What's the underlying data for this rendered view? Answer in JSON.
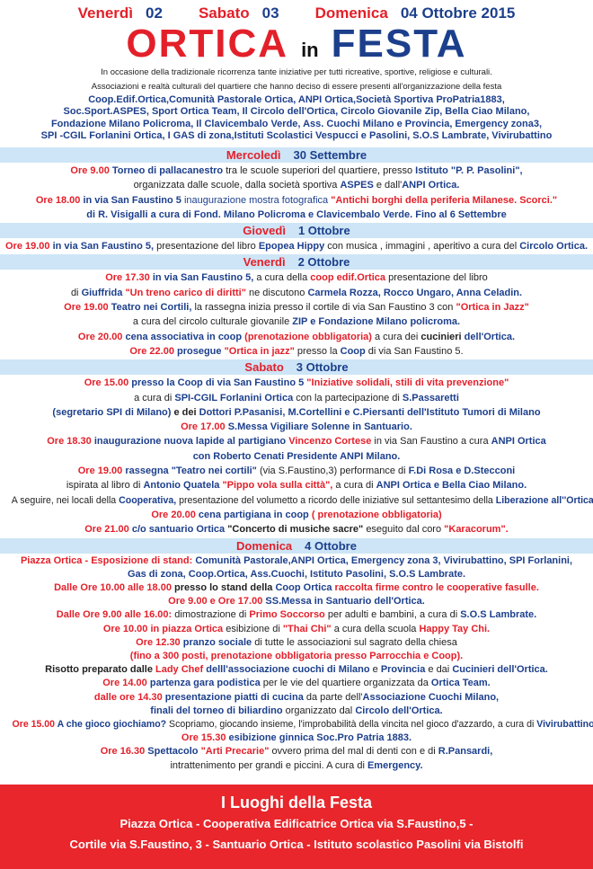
{
  "header": {
    "dates": [
      {
        "day": "Venerdì",
        "num": "02"
      },
      {
        "day": "Sabato",
        "num": "03"
      },
      {
        "day": "Domenica",
        "num": "04 Ottobre 2015"
      }
    ],
    "title_1": "ORTICA",
    "title_2": "in",
    "title_3": "FESTA",
    "intro": [
      "In occasione della tradizionale ricorrenza tante iniziative per tutti ricreative, sportive, religiose e culturali.",
      "Associazioni e realtà culturali del quartiere che hanno deciso di essere presenti all'organizzazione della festa"
    ],
    "associations": [
      "Coop.Edif.Ortica,Comunità Pastorale Ortica, ANPI Ortica,Società Sportiva ProPatria1883,",
      "Soc.Sport.ASPES, Sport Ortica Team, Il Circolo dell'Ortica, Circolo Giovanile Zip, Bella Ciao Milano,",
      "Fondazione Milano Policroma, Il Clavicembalo Verde, Ass. Cuochi Milano e Provincia, Emergency zona3,",
      "SPI -CGIL Forlanini Ortica, I GAS di zona,Istituti Scolastici Vespucci e Pasolini, S.O.S Lambrate, Vivirubattino"
    ]
  },
  "colors": {
    "red": "#e3202a",
    "navy": "#1c3f8c",
    "bar": "#cde5f6",
    "footer": "#e8262b"
  },
  "sections": [
    {
      "day": "Mercoledì",
      "date": "30 Settembre",
      "lines": [
        [
          [
            "r",
            "Ore 9.00 "
          ],
          [
            "b",
            "Torneo di pallacanestro "
          ],
          [
            "k",
            "tra le scuole superiori del quartiere, presso "
          ],
          [
            "b",
            "Istituto \"P. P.  Pasolini\","
          ]
        ],
        [
          [
            "k",
            "organizzata dalle scuole, dalla società sportiva "
          ],
          [
            "b",
            "ASPES"
          ],
          [
            "k",
            " e dall'"
          ],
          [
            "b",
            "ANPI Ortica."
          ]
        ],
        [
          [
            "r",
            "Ore 18.00 "
          ],
          [
            "b",
            "in via San Faustino 5 "
          ],
          [
            "n",
            "inaugurazione mostra fotografica "
          ],
          [
            "r",
            "\"Antichi borghi della periferia Milanese. Scorci.\""
          ]
        ],
        [
          [
            "b",
            "di R. Visigalli a cura di Fond. Milano Policroma e Clavicembalo Verde. Fino al 6 Settembre"
          ]
        ]
      ]
    },
    {
      "day": "Giovedì",
      "date": "1 Ottobre",
      "lines": [
        [
          [
            "r",
            "Ore 19.00 "
          ],
          [
            "b",
            "in via San Faustino 5, "
          ],
          [
            "k",
            "presentazione del libro "
          ],
          [
            "b",
            "Epopea Hippy "
          ],
          [
            "k",
            "con musica , immagini , aperitivo a cura del "
          ],
          [
            "b",
            "Circolo Ortica."
          ]
        ]
      ]
    },
    {
      "day": "Venerdì",
      "date": "2 Ottobre",
      "lines": [
        [
          [
            "r",
            "Ore 17.30 "
          ],
          [
            "b",
            "in via San Faustino 5, "
          ],
          [
            "k",
            "a cura della "
          ],
          [
            "r",
            "coop edif.Ortica "
          ],
          [
            "k",
            "presentazione del libro"
          ]
        ],
        [
          [
            "k",
            "di "
          ],
          [
            "b",
            "Giuffrida "
          ],
          [
            "r",
            "\"Un treno carico di diritti\" "
          ],
          [
            "k",
            "ne discutono "
          ],
          [
            "b",
            "Carmela Rozza, Rocco Ungaro, Anna Celadin."
          ]
        ],
        [
          [
            "r",
            "Ore 19.00 "
          ],
          [
            "b",
            "Teatro nei Cortili, "
          ],
          [
            "k",
            "la rassegna inizia presso il cortile di  via San Faustino 3 con "
          ],
          [
            "r",
            "\"Ortica in Jazz\""
          ]
        ],
        [
          [
            "k",
            "a cura del circolo culturale giovanile "
          ],
          [
            "b",
            "ZIP e Fondazione Milano policroma."
          ]
        ],
        [
          [
            "r",
            "Ore 20.00 "
          ],
          [
            "b",
            "cena associativa in coop "
          ],
          [
            "r",
            "(prenotazione obbligatoria) "
          ],
          [
            "k",
            "a cura dei "
          ],
          [
            "kb",
            "cucinieri "
          ],
          [
            "b",
            "dell'Ortica."
          ]
        ],
        [
          [
            "r",
            "Ore 22.00 "
          ],
          [
            "b",
            "prosegue "
          ],
          [
            "r",
            "\"Ortica in jazz\" "
          ],
          [
            "k",
            "presso la "
          ],
          [
            "b",
            "Coop "
          ],
          [
            "k",
            "di via San Faustino 5."
          ]
        ]
      ]
    },
    {
      "day": "Sabato",
      "date": "3 Ottobre",
      "lines": [
        [
          [
            "r",
            "Ore 15.00 "
          ],
          [
            "b",
            "presso la Coop di via San Faustino 5 "
          ],
          [
            "r",
            "\"Iniziative solidali, stili di vita prevenzione\""
          ]
        ],
        [
          [
            "k",
            "a cura di "
          ],
          [
            "b",
            "SPI-CGIL Forlanini Ortica "
          ],
          [
            "k",
            "con la partecipazione di "
          ],
          [
            "b",
            "S.Passaretti"
          ]
        ],
        [
          [
            "b",
            "(segretario SPI di Milano) "
          ],
          [
            "kb",
            "e dei "
          ],
          [
            "b",
            "Dottori P.Pasanisi, M.Cortellini e C.Piersanti dell'Istituto Tumori di Milano"
          ]
        ],
        [
          [
            "r",
            "Ore 17.00 "
          ],
          [
            "b",
            "S.Messa Vigiliare Solenne in Santuario."
          ]
        ],
        [
          [
            "r",
            "Ore 18.30 "
          ],
          [
            "b",
            "inaugurazione nuova lapide al partigiano "
          ],
          [
            "r",
            "Vincenzo Cortese "
          ],
          [
            "k",
            "in via San Faustino a cura "
          ],
          [
            "b",
            "ANPI Ortica"
          ]
        ],
        [
          [
            "b",
            "con Roberto Cenati Presidente ANPI Milano."
          ]
        ],
        [
          [
            "r",
            "Ore 19.00 "
          ],
          [
            "b",
            "rassegna \"Teatro nei cortili\" "
          ],
          [
            "k",
            "(via S.Faustino,3) performance di "
          ],
          [
            "b",
            "F.Di Rosa e D.Stecconi"
          ]
        ],
        [
          [
            "k",
            "ispirata al libro di "
          ],
          [
            "b",
            "Antonio Quatela "
          ],
          [
            "r",
            "\"Pippo vola sulla città\", "
          ],
          [
            "k",
            "a cura di "
          ],
          [
            "b",
            "ANPI Ortica e Bella Ciao Milano."
          ]
        ],
        [
          [
            "k",
            "A seguire, nei locali della "
          ],
          [
            "b",
            "Cooperativa, "
          ],
          [
            "k",
            "presentazione del volumetto a ricordo delle iniziative sul settantesimo della "
          ],
          [
            "b",
            "Liberazione all''Ortica"
          ]
        ],
        [
          [
            "r",
            "Ore 20.00 "
          ],
          [
            "b",
            "cena partigiana in coop "
          ],
          [
            "r",
            "( prenotazione obbligatoria)"
          ]
        ],
        [
          [
            "r",
            "Ore 21.00 "
          ],
          [
            "b",
            "c/o santuario Ortica "
          ],
          [
            "kb",
            "\"Concerto di musiche sacre\" "
          ],
          [
            "k",
            "eseguito dal coro "
          ],
          [
            "r",
            "\"Karacorum\"."
          ]
        ]
      ]
    },
    {
      "day": "Domenica",
      "date": "4 Ottobre",
      "lines": [
        [
          [
            "r",
            "Piazza Ortica - Esposizione di stand: "
          ],
          [
            "b",
            "Comunità Pastorale,ANPI Ortica, Emergency zona 3, Vivirubattino, SPI Forlanini,"
          ]
        ],
        [
          [
            "b",
            "Gas di zona, Coop.Ortica, Ass.Cuochi, Istituto Pasolini, S.O.S Lambrate."
          ]
        ],
        [
          [
            "r",
            "Dalle Ore 10.00 alle 18.00 "
          ],
          [
            "kb",
            "presso lo stand della "
          ],
          [
            "b",
            "Coop Ortica "
          ],
          [
            "r",
            "raccolta firme contro le cooperative fasulle."
          ]
        ],
        [
          [
            "r",
            "Ore 9.00 e Ore 17.00  "
          ],
          [
            "b",
            "SS.Messa in Santuario dell'Ortica."
          ]
        ],
        [
          [
            "r",
            "Dalle Ore 9.00 alle 16.00: "
          ],
          [
            "k",
            "dimostrazione di "
          ],
          [
            "r",
            "Primo Soccorso "
          ],
          [
            "k",
            "per adulti e bambini, a cura di "
          ],
          [
            "b",
            "S.O.S Lambrate."
          ]
        ],
        [
          [
            "r",
            "Ore 10.00 in piazza Ortica "
          ],
          [
            "k",
            "esibizione di "
          ],
          [
            "r",
            "\"Thai Chi\" "
          ],
          [
            "k",
            "a cura della scuola "
          ],
          [
            "r",
            "Happy Tay Chi."
          ]
        ],
        [
          [
            "r",
            "Ore 12.30 "
          ],
          [
            "b",
            "pranzo sociale "
          ],
          [
            "k",
            "di tutte le associazioni sul sagrato della chiesa"
          ]
        ],
        [
          [
            "r",
            "(fino a 300 posti, prenotazione obbligatoria presso Parrocchia e Coop)."
          ]
        ],
        [
          [
            "kb",
            "Risotto preparato dalle "
          ],
          [
            "r",
            "Lady Chef "
          ],
          [
            "b",
            "delll'associazione cuochi di Milano "
          ],
          [
            "k",
            "e "
          ],
          [
            "b",
            "Provincia "
          ],
          [
            "k",
            "e dai "
          ],
          [
            "b",
            "Cucinieri dell'Ortica."
          ]
        ],
        [
          [
            "r",
            "Ore 14.00 "
          ],
          [
            "b",
            "partenza gara podistica "
          ],
          [
            "k",
            "per le vie del quartiere organizzata da "
          ],
          [
            "b",
            "Ortica Team."
          ]
        ],
        [
          [
            "r",
            "dalle ore 14.30 "
          ],
          [
            "b",
            "presentazione piatti di cucina "
          ],
          [
            "k",
            "da parte dell'"
          ],
          [
            "b",
            "Associazione Cuochi Milano,"
          ]
        ],
        [
          [
            "b",
            "finali del torneo di biliardino "
          ],
          [
            "k",
            "organizzato dal "
          ],
          [
            "b",
            "Circolo dell'Ortica."
          ]
        ],
        [
          [
            "r",
            "Ore 15.00 "
          ],
          [
            "b",
            "A che gioco giochiamo? "
          ],
          [
            "k",
            "Scopriamo, giocando insieme, l'improbabilità della vincita nel gioco d'azzardo, a cura di "
          ],
          [
            "b",
            "Vivirubattino"
          ]
        ],
        [
          [
            "r",
            "Ore 15.30 "
          ],
          [
            "b",
            "esibizione ginnica Soc.Pro Patria 1883."
          ]
        ],
        [
          [
            "r",
            "Ore 16.30 "
          ],
          [
            "b",
            "Spettacolo "
          ],
          [
            "r",
            "\"Arti Precarie\" "
          ],
          [
            "k",
            "ovvero prima del mal di denti con e di "
          ],
          [
            "b",
            "R.Pansardi,"
          ]
        ],
        [
          [
            "k",
            "intrattenimento per grandi e piccini. A cura di "
          ],
          [
            "b",
            "Emergency."
          ]
        ]
      ]
    }
  ],
  "footer": {
    "title": "I Luoghi della Festa",
    "lines": [
      "Piazza Ortica - Cooperativa Edificatrice Ortica via S.Faustino,5 -",
      "Cortile via S.Faustino, 3 - Santuario Ortica - Istituto scolastico Pasolini via Bistolfi"
    ]
  }
}
